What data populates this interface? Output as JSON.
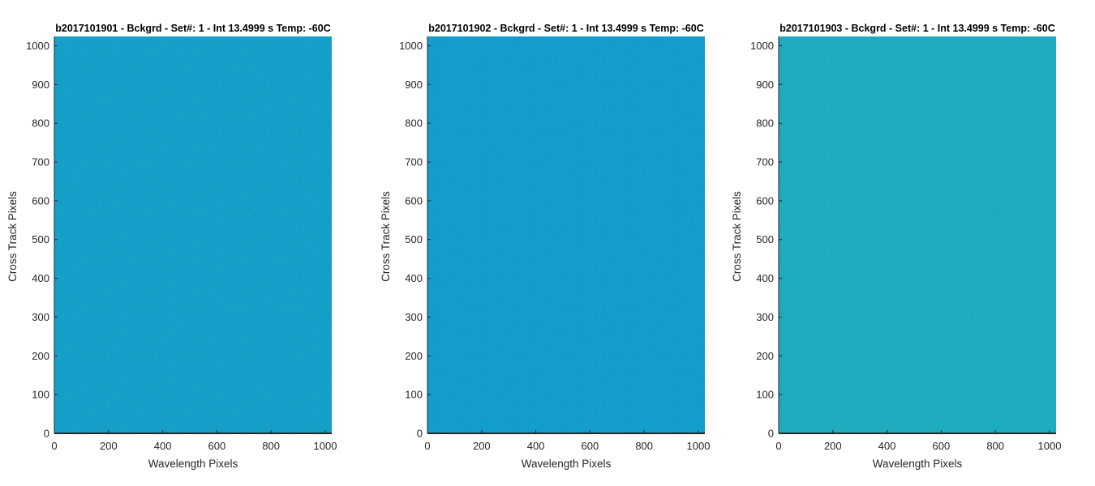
{
  "chart_data": [
    {
      "type": "heatmap",
      "title": "b2017101901 - Bckgrd - Set#: 1 - Int 13.4999 s Temp: -60C",
      "xlabel": "Wavelength Pixels",
      "ylabel": "Cross Track Pixels",
      "xlim": [
        0,
        1024
      ],
      "ylim": [
        0,
        1024
      ],
      "xticks": [
        0,
        200,
        400,
        600,
        800,
        1000
      ],
      "yticks": [
        0,
        100,
        200,
        300,
        400,
        500,
        600,
        700,
        800,
        900,
        1000
      ],
      "fill_color": "#159fc8",
      "noise_colors": [
        "#1aa8c5",
        "#22aec0",
        "#119acb"
      ],
      "grid": false
    },
    {
      "type": "heatmap",
      "title": "b2017101902 - Bckgrd - Set#: 1 - Int 13.4999 s Temp: -60C",
      "xlabel": "Wavelength Pixels",
      "ylabel": "Cross Track Pixels",
      "xlim": [
        0,
        1024
      ],
      "ylim": [
        0,
        1024
      ],
      "xticks": [
        0,
        200,
        400,
        600,
        800,
        1000
      ],
      "yticks": [
        0,
        100,
        200,
        300,
        400,
        500,
        600,
        700,
        800,
        900,
        1000
      ],
      "fill_color": "#139dcb",
      "noise_colors": [
        "#1aa5c7",
        "#0f95cc",
        "#20a9c4"
      ],
      "grid": false
    },
    {
      "type": "heatmap",
      "title": "b2017101903 - Bckgrd - Set#: 1 - Int 13.4999 s Temp: -60C",
      "xlabel": "Wavelength Pixels",
      "ylabel": "Cross Track Pixels",
      "xlim": [
        0,
        1024
      ],
      "ylim": [
        0,
        1024
      ],
      "xticks": [
        0,
        200,
        400,
        600,
        800,
        1000
      ],
      "yticks": [
        0,
        100,
        200,
        300,
        400,
        500,
        600,
        700,
        800,
        900,
        1000
      ],
      "fill_color": "#1eabbf",
      "noise_colors": [
        "#26b3b8",
        "#17a4c4",
        "#2bb6b3"
      ],
      "grid": false
    }
  ]
}
